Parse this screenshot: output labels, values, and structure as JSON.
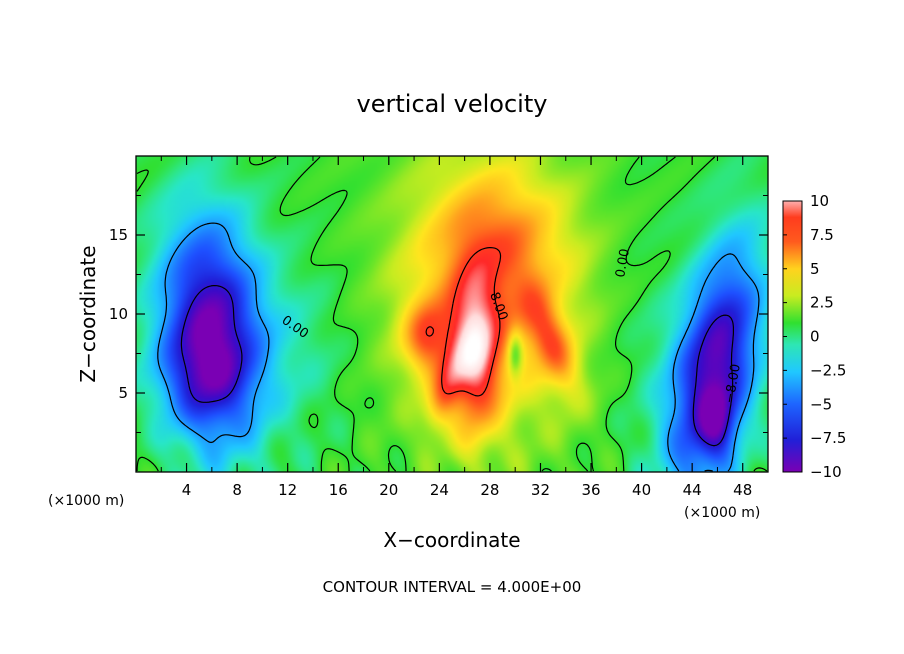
{
  "chart_data": {
    "type": "heatmap",
    "title": "vertical velocity",
    "xlabel": "X−coordinate",
    "ylabel": "Z−coordinate",
    "x_unit_left": "(×1000 m)",
    "x_unit_right": "(×1000 m)",
    "footer": "CONTOUR INTERVAL = 4.000E+00",
    "xlim": [
      0,
      50
    ],
    "ylim": [
      0,
      20
    ],
    "xticks": [
      "4",
      "8",
      "12",
      "16",
      "20",
      "24",
      "28",
      "32",
      "36",
      "40",
      "44",
      "48"
    ],
    "xtick_values": [
      4,
      8,
      12,
      16,
      20,
      24,
      28,
      32,
      36,
      40,
      44,
      48
    ],
    "yticks": [
      "5",
      "10",
      "15"
    ],
    "ytick_values": [
      5,
      10,
      15
    ],
    "colorbar": {
      "range": [
        -10,
        10
      ],
      "ticks": [
        "10",
        "7.5",
        "5",
        "2.5",
        "0",
        "−2.5",
        "−5",
        "−7.5",
        "−10"
      ],
      "tick_values": [
        10,
        7.5,
        5,
        2.5,
        0,
        -2.5,
        -5,
        -7.5,
        -10
      ]
    },
    "contour_labels": [
      "0.00",
      "8.00",
      "0.00",
      "−8.00"
    ],
    "features": [
      {
        "kind": "updraft",
        "x": 27,
        "z": 7.5,
        "peak": 12
      },
      {
        "kind": "updraft",
        "x": 23,
        "z": 9,
        "peak": 9
      },
      {
        "kind": "updraft",
        "x": 33,
        "z": 8,
        "peak": 9
      },
      {
        "kind": "updraft",
        "x": 30,
        "z": 14,
        "peak": 5
      },
      {
        "kind": "downdraft",
        "x": 6,
        "z": 9,
        "peak": -10
      },
      {
        "kind": "downdraft",
        "x": 45.5,
        "z": 6,
        "peak": -10
      }
    ]
  },
  "colors": {
    "scale": [
      "#7a00b4",
      "#2020d8",
      "#1e64ff",
      "#20c8ff",
      "#2ee6b4",
      "#30e030",
      "#c8ec20",
      "#ffd21e",
      "#ff8c1e",
      "#ff3c1e",
      "#ff6464",
      "#ffffff"
    ]
  }
}
